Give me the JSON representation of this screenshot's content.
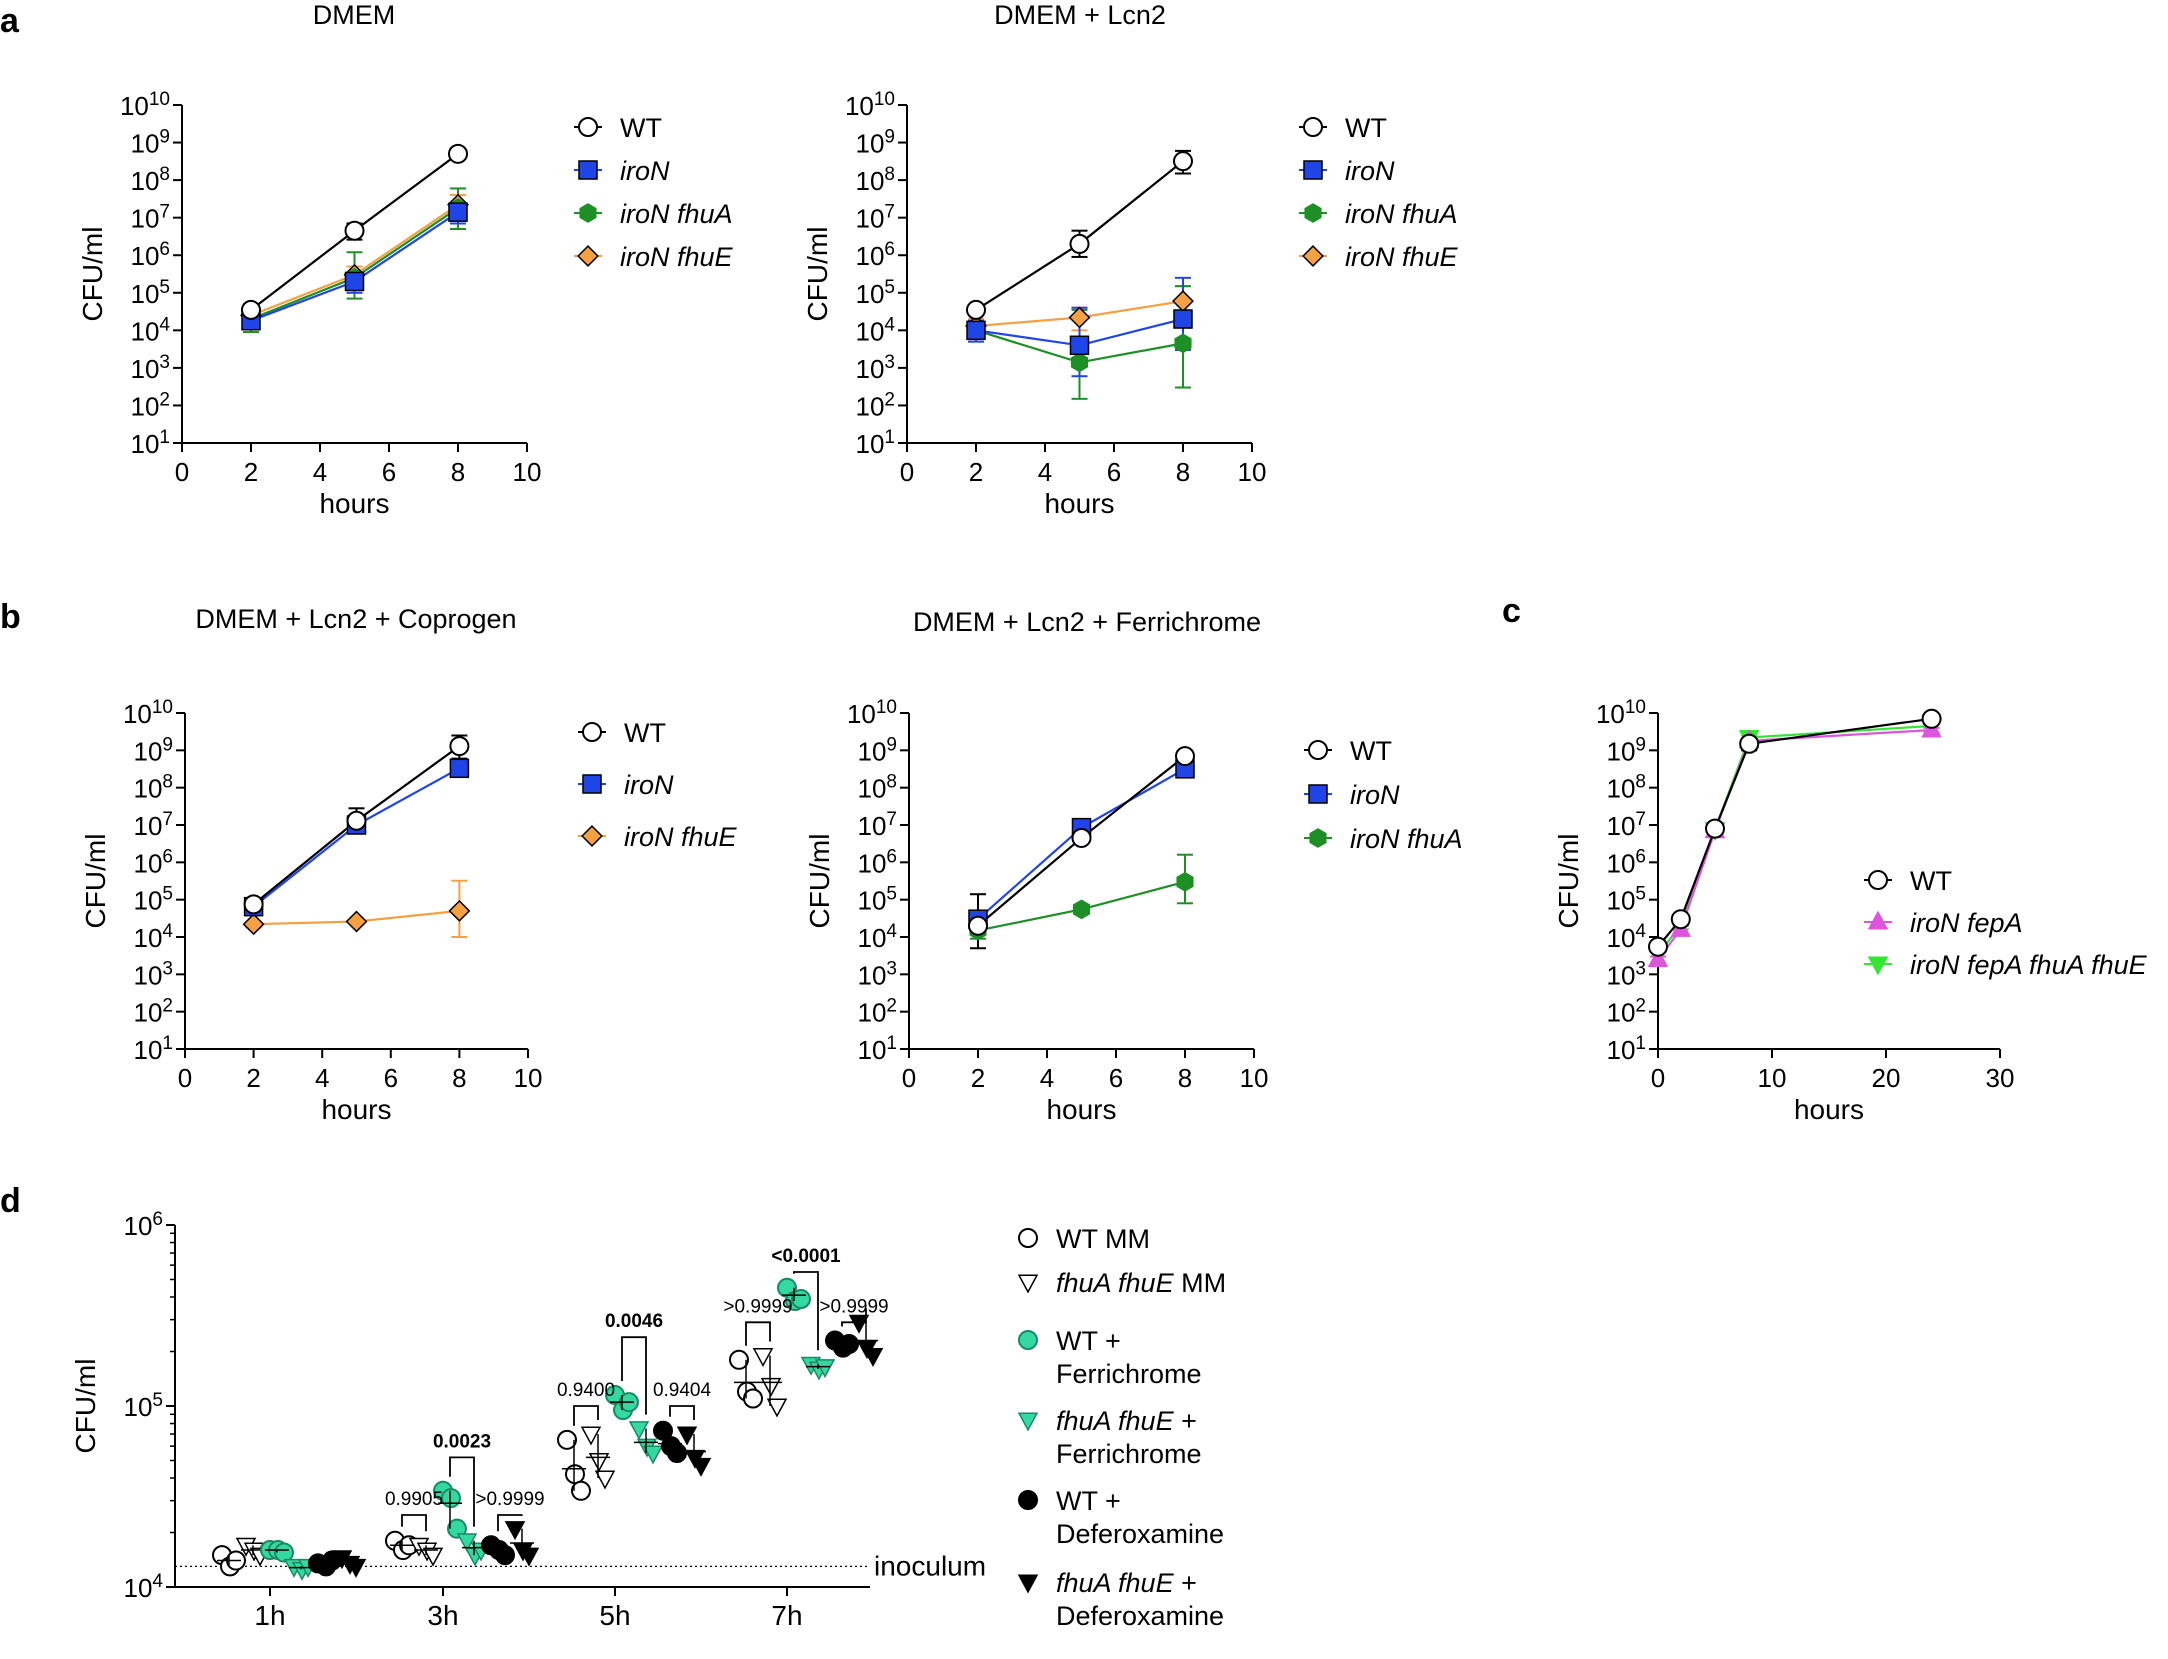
{
  "figure": {
    "panel_labels": [
      "a",
      "b",
      "c",
      "d"
    ]
  },
  "colors": {
    "wt": "#000000",
    "iroN": "#1f45e6",
    "fhuA": "#1e8f25",
    "fhuE": "#f5a043",
    "fepA": "#dd55dd",
    "fepAall": "#33e633",
    "ferri": "#33d9a0",
    "black": "#000000"
  },
  "chart_data": [
    {
      "type": "line",
      "panel": "a",
      "title": "DMEM",
      "xlabel": "hours",
      "ylabel": "CFU/ml",
      "xlim": [
        0,
        10
      ],
      "xticks": [
        0,
        2,
        4,
        6,
        8,
        10
      ],
      "ylim_log10": [
        1,
        10
      ],
      "yscale": "log",
      "series": [
        {
          "key": "wt",
          "name": "WT",
          "marker": "circle",
          "x": [
            2,
            5,
            8
          ],
          "values": [
            35000.0,
            4500000.0,
            500000000.0
          ],
          "err_lo": [
            26000.0,
            2600000.0,
            450000000.0
          ],
          "err_hi": [
            45000.0,
            7000000.0,
            550000000.0
          ]
        },
        {
          "key": "iroN",
          "name": "iroN",
          "marker": "square",
          "x": [
            2,
            5,
            8
          ],
          "values": [
            18000.0,
            200000.0,
            14000000.0
          ],
          "err_lo": [
            12000.0,
            100000.0,
            7000000.0
          ],
          "err_hi": [
            26000.0,
            350000.0,
            25000000.0
          ]
        },
        {
          "key": "fhuA",
          "name": "iroN fhuA",
          "marker": "hexagon",
          "x": [
            2,
            5,
            8
          ],
          "values": [
            20000.0,
            250000.0,
            18000000.0
          ],
          "err_lo": [
            9000.0,
            70000.0,
            5000000.0
          ],
          "err_hi": [
            50000.0,
            1200000.0,
            60000000.0
          ]
        },
        {
          "key": "fhuE",
          "name": "iroN fhuE",
          "marker": "diamond",
          "x": [
            2,
            5,
            8
          ],
          "values": [
            25000.0,
            300000.0,
            22000000.0
          ],
          "err_lo": [
            15000.0,
            150000.0,
            10000000.0
          ],
          "err_hi": [
            40000.0,
            500000.0,
            40000000.0
          ]
        }
      ]
    },
    {
      "type": "line",
      "panel": "a",
      "title": "DMEM + Lcn2",
      "xlabel": "hours",
      "ylabel": "CFU/ml",
      "xlim": [
        0,
        10
      ],
      "xticks": [
        0,
        2,
        4,
        6,
        8,
        10
      ],
      "ylim_log10": [
        1,
        10
      ],
      "yscale": "log",
      "series": [
        {
          "key": "wt",
          "name": "WT",
          "marker": "circle",
          "x": [
            2,
            5,
            8
          ],
          "values": [
            35000.0,
            2000000.0,
            320000000.0
          ],
          "err_lo": [
            26000.0,
            900000.0,
            150000000.0
          ],
          "err_hi": [
            45000.0,
            4500000.0,
            600000000.0
          ]
        },
        {
          "key": "iroN",
          "name": "iroN",
          "marker": "square",
          "x": [
            2,
            5,
            8
          ],
          "values": [
            10000.0,
            4000.0,
            20000.0
          ],
          "err_lo": [
            5000.0,
            600.0,
            3000.0
          ],
          "err_hi": [
            18000.0,
            40000.0,
            250000.0
          ]
        },
        {
          "key": "fhuA",
          "name": "iroN fhuA",
          "marker": "hexagon",
          "x": [
            2,
            5,
            8
          ],
          "values": [
            10000.0,
            1400.0,
            4500.0
          ],
          "err_lo": [
            6000.0,
            150.0,
            300.0
          ],
          "err_hi": [
            16000.0,
            35000.0,
            150000.0
          ]
        },
        {
          "key": "fhuE",
          "name": "iroN fhuE",
          "marker": "diamond",
          "x": [
            2,
            5,
            8
          ],
          "values": [
            13000.0,
            22000.0,
            60000.0
          ],
          "err_lo": [
            8000.0,
            10000.0,
            20000.0
          ],
          "err_hi": [
            20000.0,
            40000.0,
            150000.0
          ]
        }
      ]
    },
    {
      "type": "line",
      "panel": "b",
      "title": "DMEM + Lcn2 + Coprogen",
      "xlabel": "hours",
      "ylabel": "CFU/ml",
      "xlim": [
        0,
        10
      ],
      "xticks": [
        0,
        2,
        4,
        6,
        8,
        10
      ],
      "ylim_log10": [
        1,
        10
      ],
      "yscale": "log",
      "series": [
        {
          "key": "wt",
          "name": "WT",
          "marker": "circle",
          "x": [
            2,
            5,
            8
          ],
          "values": [
            75000.0,
            13000000.0,
            1300000000.0
          ],
          "err_lo": [
            50000.0,
            7000000.0,
            600000000.0
          ],
          "err_hi": [
            100000.0,
            28000000.0,
            2500000000.0
          ]
        },
        {
          "key": "iroN",
          "name": "iroN",
          "marker": "square",
          "x": [
            2,
            5,
            8
          ],
          "values": [
            65000.0,
            10000000.0,
            330000000.0
          ],
          "err_lo": [
            45000.0,
            7000000.0,
            200000000.0
          ],
          "err_hi": [
            90000.0,
            14000000.0,
            500000000.0
          ]
        },
        {
          "key": "fhuE",
          "name": "iroN fhuE",
          "marker": "diamond",
          "x": [
            2,
            5,
            8
          ],
          "values": [
            22000.0,
            26000.0,
            50000.0
          ],
          "err_lo": [
            18000.0,
            22000.0,
            10000.0
          ],
          "err_hi": [
            26000.0,
            30000.0,
            320000.0
          ]
        }
      ]
    },
    {
      "type": "line",
      "panel": "b",
      "title": "DMEM + Lcn2 + Ferrichrome",
      "xlabel": "hours",
      "ylabel": "CFU/ml",
      "xlim": [
        0,
        10
      ],
      "xticks": [
        0,
        2,
        4,
        6,
        8,
        10
      ],
      "ylim_log10": [
        1,
        10
      ],
      "yscale": "log",
      "series": [
        {
          "key": "wt",
          "name": "WT",
          "marker": "circle",
          "x": [
            2,
            5,
            8
          ],
          "values": [
            20000.0,
            4500000.0,
            700000000.0
          ],
          "err_lo": [
            5000.0,
            3500000.0,
            500000000.0
          ],
          "err_hi": [
            140000.0,
            6000000.0,
            900000000.0
          ]
        },
        {
          "key": "iroN",
          "name": "iroN",
          "marker": "square",
          "x": [
            2,
            5,
            8
          ],
          "values": [
            30000.0,
            8500000.0,
            320000000.0
          ],
          "err_lo": [
            15000.0,
            7000000.0,
            250000000.0
          ],
          "err_hi": [
            50000.0,
            10000000.0,
            400000000.0
          ]
        },
        {
          "key": "fhuA",
          "name": "iroN fhuA",
          "marker": "hexagon",
          "x": [
            2,
            5,
            8
          ],
          "values": [
            15000.0,
            55000.0,
            300000.0
          ],
          "err_lo": [
            9000.0,
            45000.0,
            80000.0
          ],
          "err_hi": [
            25000.0,
            65000.0,
            1600000.0
          ]
        }
      ]
    },
    {
      "type": "line",
      "panel": "c",
      "title": "",
      "xlabel": "hours",
      "ylabel": "CFU/ml",
      "xlim": [
        0,
        30
      ],
      "xticks": [
        0,
        10,
        20,
        30
      ],
      "ylim_log10": [
        1,
        10
      ],
      "yscale": "log",
      "series": [
        {
          "key": "wt",
          "name": "WT",
          "marker": "circle",
          "x": [
            0,
            2,
            5,
            8,
            24
          ],
          "values": [
            5500.0,
            30000.0,
            8000000.0,
            1500000000.0,
            7000000000.0
          ],
          "err_lo": [
            4000.0,
            22000.0,
            5500000.0,
            1000000000.0,
            6000000000.0
          ],
          "err_hi": [
            7000.0,
            40000.0,
            11000000.0,
            2000000000.0,
            8000000000.0
          ]
        },
        {
          "key": "fepA",
          "name": "iroN fepA",
          "marker": "triangle-up",
          "x": [
            0,
            2,
            5,
            8,
            24
          ],
          "values": [
            2500.0,
            16000.0,
            7000000.0,
            1800000000.0,
            3500000000.0
          ],
          "err_lo": [
            2000.0,
            12000.0,
            5000000.0,
            1500000000.0,
            3000000000.0
          ],
          "err_hi": [
            3000.0,
            20000.0,
            9000000.0,
            2100000000.0,
            4000000000.0
          ]
        },
        {
          "key": "fepAall",
          "name": "iroN fepA fhuA fhuE",
          "marker": "triangle-down",
          "x": [
            0,
            2,
            5,
            8,
            24
          ],
          "values": [
            3500.0,
            20000.0,
            7500000.0,
            2200000000.0,
            4500000000.0
          ],
          "err_lo": [
            3000.0,
            16000.0,
            6000000.0,
            1900000000.0,
            4000000000.0
          ],
          "err_hi": [
            4000.0,
            24000.0,
            9000000.0,
            2500000000.0,
            5000000000.0
          ]
        }
      ]
    },
    {
      "type": "scatter",
      "panel": "d",
      "ylabel": "CFU/ml",
      "ylim_log10": [
        4,
        6
      ],
      "yscale": "log",
      "categories": [
        "1h",
        "3h",
        "5h",
        "7h"
      ],
      "reference_line": {
        "value": 13000.0,
        "label": "inoculum"
      },
      "groups": [
        {
          "key": "wt_mm",
          "name": "WT MM",
          "marker": "circle",
          "fill": "white",
          "points": [
            [
              15000.0,
              13000.0,
              14000.0
            ],
            [
              18000.0,
              16000.0,
              17000.0
            ],
            [
              65000.0,
              42000.0,
              34000.0
            ],
            [
              180000.0,
              120000.0,
              110000.0
            ]
          ],
          "mean": [
            14000.0,
            17000.0,
            45000.0,
            135000.0
          ]
        },
        {
          "key": "fhu_mm",
          "name": "fhuA fhuE MM",
          "marker": "triangle-down",
          "fill": "white",
          "points": [
            [
              17000.0,
              16000.0,
              15000.0
            ],
            [
              17000.0,
              16000.0,
              15000.0
            ],
            [
              70000.0,
              50000.0,
              40000.0
            ],
            [
              190000.0,
              130000.0,
              100000.0
            ]
          ],
          "mean": [
            16000.0,
            16000.0,
            52000.0,
            135000.0
          ]
        },
        {
          "key": "wt_fc",
          "name": "WT + Ferrichrome",
          "marker": "circle",
          "fill": "ferri",
          "points": [
            [
              16000.0,
              16000.0,
              15500.0
            ],
            [
              34000.0,
              31000.0,
              21000.0
            ],
            [
              115000.0,
              95000.0,
              105000.0
            ],
            [
              450000.0,
              380000.0,
              390000.0
            ]
          ],
          "mean": [
            16000.0,
            29000.0,
            105000.0,
            410000.0
          ]
        },
        {
          "key": "fhu_fc",
          "name": "fhuA fhuE + Ferrichrome",
          "marker": "triangle-down",
          "fill": "ferri",
          "points": [
            [
              13000.0,
              12500.0,
              13000.0
            ],
            [
              18000.0,
              15000.0,
              16000.0
            ],
            [
              75000.0,
              60000.0,
              55000.0
            ],
            [
              170000.0,
              160000.0,
              165000.0
            ]
          ],
          "mean": [
            12800.0,
            16500.0,
            63000.0,
            165000.0
          ]
        },
        {
          "key": "wt_dfo",
          "name": "WT + Deferoxamine",
          "marker": "circle",
          "fill": "black",
          "points": [
            [
              13500.0,
              13000.0,
              14000.0
            ],
            [
              17000.0,
              16000.0,
              15000.0
            ],
            [
              73000.0,
              60000.0,
              55000.0
            ],
            [
              230000.0,
              210000.0,
              220000.0
            ]
          ],
          "mean": [
            13500.0,
            16000.0,
            62000.0,
            220000.0
          ]
        },
        {
          "key": "fhu_dfo",
          "name": "fhuA fhuE + Deferoxamine",
          "marker": "triangle-down",
          "fill": "black",
          "points": [
            [
              14500.0,
              13500.0,
              13000.0
            ],
            [
              21000.0,
              16000.0,
              15000.0
            ],
            [
              70000.0,
              52000.0,
              47000.0
            ],
            [
              290000.0,
              210000.0,
              190000.0
            ]
          ],
          "mean": [
            13800.0,
            17500.0,
            56000.0,
            230000.0
          ]
        }
      ],
      "comparisons": [
        {
          "cat": 1,
          "a": "wt_mm",
          "b": "fhu_mm",
          "label": "0.9905",
          "bold": false,
          "top": 25000.0
        },
        {
          "cat": 1,
          "a": "wt_fc",
          "b": "fhu_fc",
          "label": "0.0023",
          "bold": true,
          "top": 52000.0
        },
        {
          "cat": 1,
          "a": "wt_dfo",
          "b": "fhu_dfo",
          "label": ">0.9999",
          "bold": false,
          "top": 25000.0
        },
        {
          "cat": 2,
          "a": "wt_mm",
          "b": "fhu_mm",
          "label": "0.9400",
          "bold": false,
          "top": 100000.0
        },
        {
          "cat": 2,
          "a": "wt_fc",
          "b": "fhu_fc",
          "label": "0.0046",
          "bold": true,
          "top": 240000.0
        },
        {
          "cat": 2,
          "a": "wt_dfo",
          "b": "fhu_dfo",
          "label": "0.9404",
          "bold": false,
          "top": 100000.0
        },
        {
          "cat": 3,
          "a": "wt_mm",
          "b": "fhu_mm",
          "label": ">0.9999",
          "bold": false,
          "top": 290000.0
        },
        {
          "cat": 3,
          "a": "wt_fc",
          "b": "fhu_fc",
          "label": "<0.0001",
          "bold": true,
          "top": 550000.0
        },
        {
          "cat": 3,
          "a": "wt_dfo",
          "b": "fhu_dfo",
          "label": ">0.9999",
          "bold": false,
          "top": 290000.0
        }
      ],
      "legend": [
        {
          "key": "wt_mm",
          "lines": [
            {
              "parts": [
                {
                  "t": "WT MM",
                  "i": false
                }
              ]
            }
          ]
        },
        {
          "key": "fhu_mm",
          "lines": [
            {
              "parts": [
                {
                  "t": "fhuA fhuE",
                  "i": true
                },
                {
                  "t": " MM",
                  "i": false
                }
              ]
            }
          ]
        },
        {
          "key": "wt_fc",
          "lines": [
            {
              "parts": [
                {
                  "t": "WT +",
                  "i": false
                }
              ]
            },
            {
              "parts": [
                {
                  "t": "Ferrichrome",
                  "i": false
                }
              ]
            }
          ]
        },
        {
          "key": "fhu_fc",
          "lines": [
            {
              "parts": [
                {
                  "t": "fhuA fhuE",
                  "i": true
                },
                {
                  "t": " +",
                  "i": false
                }
              ]
            },
            {
              "parts": [
                {
                  "t": "Ferrichrome",
                  "i": false
                }
              ]
            }
          ]
        },
        {
          "key": "wt_dfo",
          "lines": [
            {
              "parts": [
                {
                  "t": "WT +",
                  "i": false
                }
              ]
            },
            {
              "parts": [
                {
                  "t": "Deferoxamine",
                  "i": false
                }
              ]
            }
          ]
        },
        {
          "key": "fhu_dfo",
          "lines": [
            {
              "parts": [
                {
                  "t": "fhuA fhuE",
                  "i": true
                },
                {
                  "t": " +",
                  "i": false
                }
              ]
            },
            {
              "parts": [
                {
                  "t": "Deferoxamine",
                  "i": false
                }
              ]
            }
          ]
        }
      ]
    }
  ]
}
